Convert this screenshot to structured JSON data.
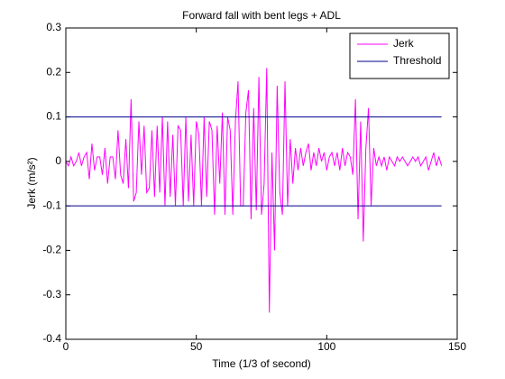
{
  "chart_data": {
    "type": "line",
    "title": "Forward fall with bent legs + ADL",
    "xlabel": "Time (1/3 of second)",
    "ylabel": "Jerk (m/s²)",
    "xlim": [
      0,
      150
    ],
    "xticks": [
      0,
      50,
      100,
      150
    ],
    "ylim": [
      -0.4,
      0.3
    ],
    "yticks": [
      -0.4,
      -0.3,
      -0.2,
      -0.1,
      0,
      0.1,
      0.2,
      0.3
    ],
    "legend": "top-right",
    "series": [
      {
        "name": "Jerk",
        "color": "#ff00ff",
        "x": [
          0,
          1,
          2,
          3,
          4,
          5,
          6,
          7,
          8,
          9,
          10,
          11,
          12,
          13,
          14,
          15,
          16,
          17,
          18,
          19,
          20,
          21,
          22,
          23,
          24,
          25,
          26,
          27,
          28,
          29,
          30,
          31,
          32,
          33,
          34,
          35,
          36,
          37,
          38,
          39,
          40,
          41,
          42,
          43,
          44,
          45,
          46,
          47,
          48,
          49,
          50,
          51,
          52,
          53,
          54,
          55,
          56,
          57,
          58,
          59,
          60,
          61,
          62,
          63,
          64,
          65,
          66,
          67,
          68,
          69,
          70,
          71,
          72,
          73,
          74,
          75,
          76,
          77,
          78,
          79,
          80,
          81,
          82,
          83,
          84,
          85,
          86,
          87,
          88,
          89,
          90,
          91,
          92,
          93,
          94,
          95,
          96,
          97,
          98,
          99,
          100,
          101,
          102,
          103,
          104,
          105,
          106,
          107,
          108,
          109,
          110,
          111,
          112,
          113,
          114,
          115,
          116,
          117,
          118,
          119,
          120,
          121,
          122,
          123,
          124,
          125,
          126,
          127,
          128,
          129,
          130,
          131,
          132,
          133,
          134,
          135,
          136,
          137,
          138,
          139,
          140,
          141,
          142,
          143,
          144
        ],
        "values": [
          0,
          -0.01,
          0.01,
          -0.01,
          0,
          0.02,
          -0.01,
          0.01,
          0.02,
          -0.04,
          0.04,
          -0.02,
          0.01,
          0.01,
          -0.03,
          0.03,
          -0.05,
          0.01,
          0.01,
          -0.04,
          0.07,
          -0.03,
          -0.05,
          0.05,
          -0.06,
          0.14,
          -0.09,
          -0.07,
          0.09,
          -0.03,
          0.08,
          -0.07,
          -0.06,
          0.07,
          -0.08,
          0.08,
          -0.07,
          0.1,
          -0.1,
          0.09,
          -0.08,
          0.06,
          -0.1,
          0.08,
          0.07,
          -0.1,
          0.1,
          -0.09,
          0.06,
          -0.1,
          0.09,
          0.06,
          -0.1,
          0.1,
          -0.08,
          0.09,
          0.07,
          -0.12,
          0.08,
          -0.05,
          0.11,
          -0.12,
          0.1,
          0.07,
          -0.12,
          0.09,
          0.18,
          -0.1,
          -0.1,
          0.11,
          0.16,
          -0.13,
          0.12,
          -0.11,
          0.19,
          -0.12,
          -0.05,
          0.21,
          -0.34,
          0.02,
          -0.2,
          0.17,
          -0.07,
          -0.12,
          0.18,
          -0.1,
          0.05,
          -0.05,
          0.03,
          -0.02,
          0.03,
          -0.01,
          0.02,
          0.04,
          -0.02,
          0.02,
          -0.01,
          0.03,
          0,
          0.02,
          -0.02,
          0.01,
          0.02,
          -0.01,
          0.02,
          -0.02,
          0.03,
          -0.01,
          0.02,
          0.01,
          -0.03,
          0.14,
          -0.13,
          0.09,
          -0.18,
          0.03,
          0.12,
          -0.1,
          0.03,
          -0.01,
          0.01,
          -0.01,
          0.01,
          -0.02,
          0.01,
          0,
          -0.01,
          0.01,
          0,
          0.01,
          0,
          -0.01,
          0,
          0.01,
          0,
          0.01,
          -0.01,
          0,
          0.01,
          -0.02,
          0,
          0.02,
          -0.01,
          0.01,
          -0.01
        ]
      },
      {
        "name": "Threshold",
        "color": "#00008b",
        "x": [
          0,
          144,
          null,
          0,
          144
        ],
        "values": [
          0.1,
          0.1,
          null,
          -0.1,
          -0.1
        ]
      }
    ]
  }
}
